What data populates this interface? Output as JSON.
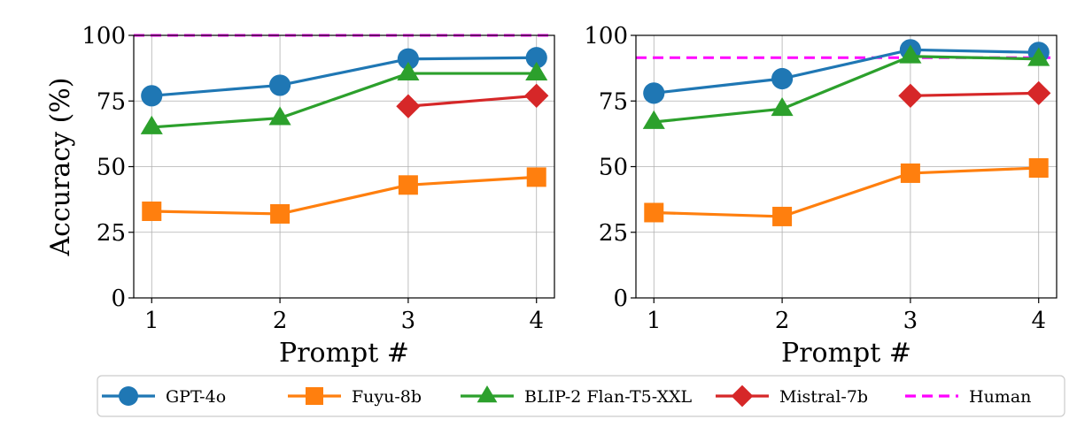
{
  "chart_data": [
    {
      "type": "line",
      "panel": "left",
      "categories": [
        "1",
        "2",
        "3",
        "4"
      ],
      "x": [
        1,
        2,
        3,
        4
      ],
      "xlabel": "Prompt #",
      "ylabel": "Accuracy (%)",
      "ylim": [
        0,
        100
      ],
      "yticks": [
        0,
        25,
        50,
        75,
        100
      ],
      "grid": true,
      "series": [
        {
          "name": "GPT-4o",
          "color": "#1f77b4",
          "marker": "circle",
          "values": [
            77,
            81,
            91,
            91.5
          ]
        },
        {
          "name": "Fuyu-8b",
          "color": "#ff7f0e",
          "marker": "square",
          "values": [
            33,
            32,
            43,
            46
          ]
        },
        {
          "name": "BLIP-2 Flan-T5-XXL",
          "color": "#2ca02c",
          "marker": "triangle",
          "values": [
            65,
            68.5,
            85.5,
            85.5
          ]
        },
        {
          "name": "Mistral-7b",
          "color": "#d62728",
          "marker": "diamond",
          "values": [
            null,
            null,
            73,
            77
          ]
        }
      ],
      "reference_line": {
        "name": "Human",
        "color": "#ff00ff",
        "style": "dashed",
        "value": 100
      }
    },
    {
      "type": "line",
      "panel": "right",
      "categories": [
        "1",
        "2",
        "3",
        "4"
      ],
      "x": [
        1,
        2,
        3,
        4
      ],
      "xlabel": "Prompt #",
      "ylabel": "",
      "ylim": [
        0,
        100
      ],
      "yticks": [
        0,
        25,
        50,
        75,
        100
      ],
      "grid": true,
      "series": [
        {
          "name": "GPT-4o",
          "color": "#1f77b4",
          "marker": "circle",
          "values": [
            78,
            83.5,
            94.5,
            93.5
          ]
        },
        {
          "name": "Fuyu-8b",
          "color": "#ff7f0e",
          "marker": "square",
          "values": [
            32.5,
            31,
            47.5,
            49.5
          ]
        },
        {
          "name": "BLIP-2 Flan-T5-XXL",
          "color": "#2ca02c",
          "marker": "triangle",
          "values": [
            67,
            72,
            92,
            91
          ]
        },
        {
          "name": "Mistral-7b",
          "color": "#d62728",
          "marker": "diamond",
          "values": [
            null,
            null,
            77,
            78
          ]
        }
      ],
      "reference_line": {
        "name": "Human",
        "color": "#ff00ff",
        "style": "dashed",
        "value": 91.5
      }
    }
  ],
  "legend": {
    "placement": "bottom",
    "entries": [
      {
        "name": "GPT-4o",
        "color": "#1f77b4",
        "marker": "circle",
        "style": "solid"
      },
      {
        "name": "Fuyu-8b",
        "color": "#ff7f0e",
        "marker": "square",
        "style": "solid"
      },
      {
        "name": "BLIP-2 Flan-T5-XXL",
        "color": "#2ca02c",
        "marker": "triangle",
        "style": "solid"
      },
      {
        "name": "Mistral-7b",
        "color": "#d62728",
        "marker": "diamond",
        "style": "solid"
      },
      {
        "name": "Human",
        "color": "#ff00ff",
        "marker": "none",
        "style": "dashed"
      }
    ]
  }
}
